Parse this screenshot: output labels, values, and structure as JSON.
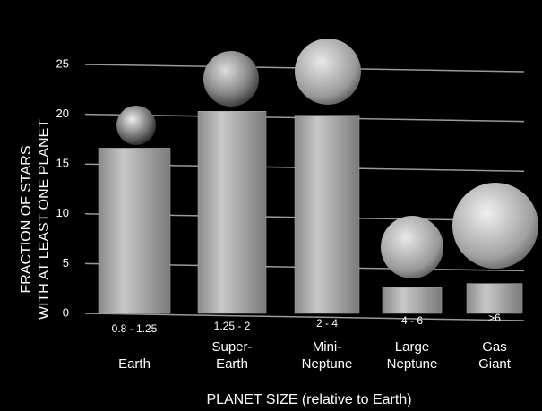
{
  "chart_data": {
    "type": "bar",
    "categories": [
      "Earth",
      "Super-Earth",
      "Mini-Neptune",
      "Large Neptune",
      "Gas Giant"
    ],
    "size_ranges": [
      "0.8 - 1.25",
      "1.25 - 2",
      "2 - 4",
      "4 - 6",
      ">6"
    ],
    "values": [
      16.6,
      20.3,
      19.9,
      2.6,
      3.0
    ],
    "color": "#b0b0b0",
    "ylabel": [
      "FRACTION OF STARS",
      "WITH AT LEAST ONE PLANET"
    ],
    "xlabel": "PLANET SIZE (relative to Earth)",
    "ylim": [
      0,
      25
    ],
    "yticks": [
      0,
      5,
      10,
      15,
      20,
      25
    ],
    "grid": true
  }
}
